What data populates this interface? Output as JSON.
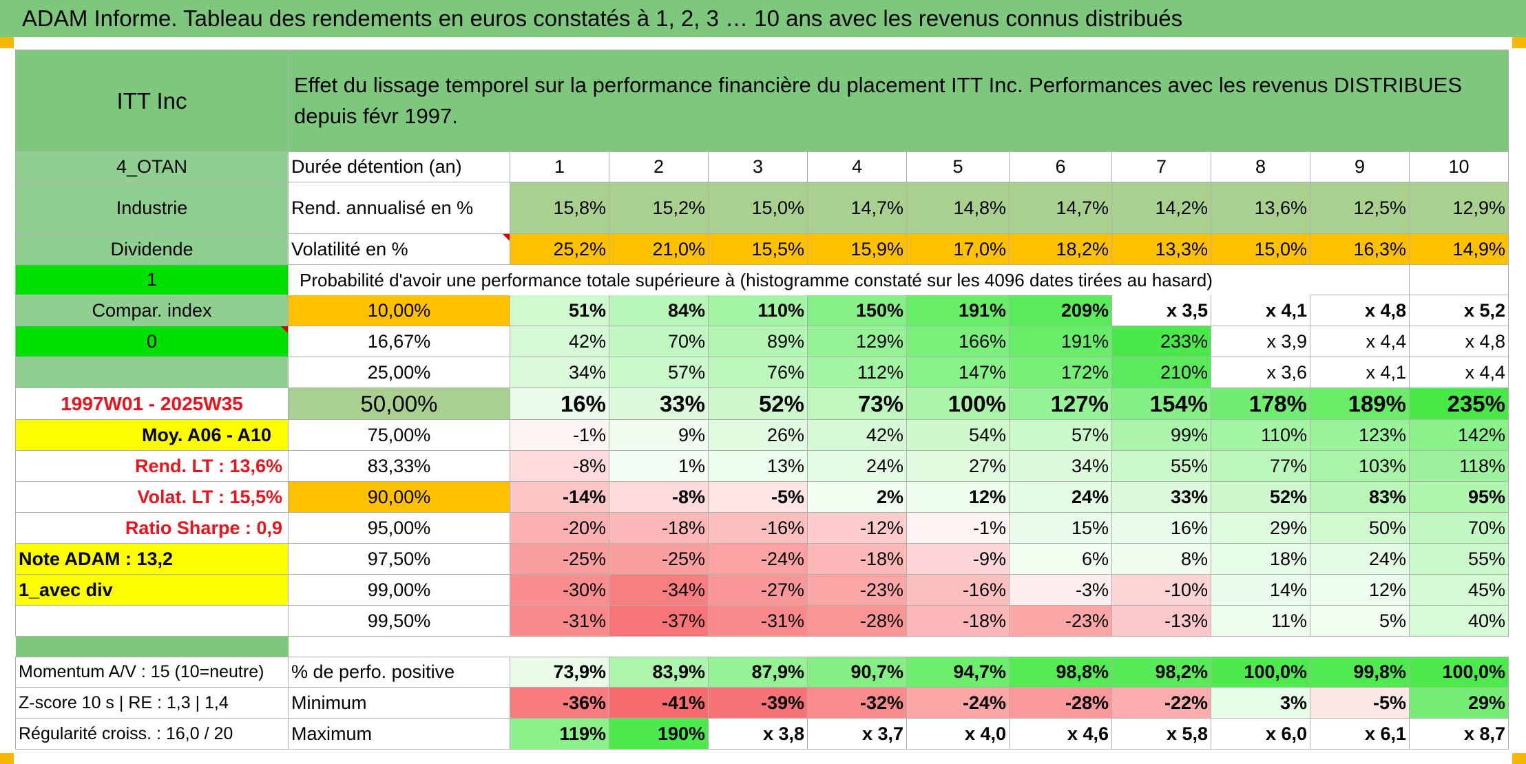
{
  "title": "ADAM Informe. Tableau des rendements en euros constatés à 1, 2, 3 … 10 ans avec les revenus connus distribués",
  "left": {
    "company": "ITT Inc",
    "code": "4_OTAN",
    "sector": "Industrie",
    "dividend_label": "Dividende",
    "dividend_flag": "1",
    "compar_label": "Compar. index",
    "compar_value": "0",
    "period": "1997W01 - 2025W35",
    "moy": "Moy. A06 - A10",
    "rend_lt": "Rend. LT :    13,6%",
    "volat_lt": "Volat. LT :    15,5%",
    "sharpe": "Ratio Sharpe :    0,9",
    "note": "Note ADAM : 13,2",
    "avec_div": "1_avec div",
    "momentum": "Momentum A/V : 15 (10=neutre)",
    "zscore": "Z-score 10 s | RE : 1,3 | 1,4",
    "regularite": "Régularité croiss. : 16,0 / 20"
  },
  "description": "Effet du lissage temporel sur la performance financière du placement ITT Inc. Performances avec les revenus DISTRIBUES depuis févr 1997.",
  "duration_label": "Durée détention (an)",
  "years": [
    "1",
    "2",
    "3",
    "4",
    "5",
    "6",
    "7",
    "8",
    "9",
    "10"
  ],
  "rend_label": "Rend. annualisé en %",
  "rend": [
    "15,8%",
    "15,2%",
    "15,0%",
    "14,7%",
    "14,8%",
    "14,7%",
    "14,2%",
    "13,6%",
    "12,5%",
    "12,9%"
  ],
  "vol_label": "Volatilité en %",
  "vol": [
    "25,2%",
    "21,0%",
    "15,5%",
    "15,9%",
    "17,0%",
    "18,2%",
    "13,3%",
    "15,0%",
    "16,3%",
    "14,9%"
  ],
  "prob_label": "Probabilité d'avoir une performance totale supérieure à (histogramme constaté sur les 4096 dates tirées au hasard)",
  "prob_rows": [
    {
      "p": "10,00%",
      "v": [
        "51%",
        "84%",
        "110%",
        "150%",
        "191%",
        "209%",
        "x 3,5",
        "x 4,1",
        "x 4,8",
        "x 5,2"
      ]
    },
    {
      "p": "16,67%",
      "v": [
        "42%",
        "70%",
        "89%",
        "129%",
        "166%",
        "191%",
        "233%",
        "x 3,9",
        "x 4,4",
        "x 4,8"
      ]
    },
    {
      "p": "25,00%",
      "v": [
        "34%",
        "57%",
        "76%",
        "112%",
        "147%",
        "172%",
        "210%",
        "x 3,6",
        "x 4,1",
        "x 4,4"
      ]
    },
    {
      "p": "50,00%",
      "v": [
        "16%",
        "33%",
        "52%",
        "73%",
        "100%",
        "127%",
        "154%",
        "178%",
        "189%",
        "235%"
      ]
    },
    {
      "p": "75,00%",
      "v": [
        "-1%",
        "9%",
        "26%",
        "42%",
        "54%",
        "57%",
        "99%",
        "110%",
        "123%",
        "142%"
      ]
    },
    {
      "p": "83,33%",
      "v": [
        "-8%",
        "1%",
        "13%",
        "24%",
        "27%",
        "34%",
        "55%",
        "77%",
        "103%",
        "118%"
      ]
    },
    {
      "p": "90,00%",
      "v": [
        "-14%",
        "-8%",
        "-5%",
        "2%",
        "12%",
        "24%",
        "33%",
        "52%",
        "83%",
        "95%"
      ]
    },
    {
      "p": "95,00%",
      "v": [
        "-20%",
        "-18%",
        "-16%",
        "-12%",
        "-1%",
        "15%",
        "16%",
        "29%",
        "50%",
        "70%"
      ]
    },
    {
      "p": "97,50%",
      "v": [
        "-25%",
        "-25%",
        "-24%",
        "-18%",
        "-9%",
        "6%",
        "8%",
        "18%",
        "24%",
        "55%"
      ]
    },
    {
      "p": "99,00%",
      "v": [
        "-30%",
        "-34%",
        "-27%",
        "-23%",
        "-16%",
        "-3%",
        "-10%",
        "14%",
        "12%",
        "45%"
      ]
    },
    {
      "p": "99,50%",
      "v": [
        "-31%",
        "-37%",
        "-31%",
        "-28%",
        "-18%",
        "-23%",
        "-13%",
        "11%",
        "5%",
        "40%"
      ]
    }
  ],
  "pos_label": "% de perfo. positive",
  "pos": [
    "73,9%",
    "83,9%",
    "87,9%",
    "90,7%",
    "94,7%",
    "98,8%",
    "98,2%",
    "100,0%",
    "99,8%",
    "100,0%"
  ],
  "min_label": "Minimum",
  "min": [
    "-36%",
    "-41%",
    "-39%",
    "-32%",
    "-24%",
    "-28%",
    "-22%",
    "3%",
    "-5%",
    "29%"
  ],
  "max_label": "Maximum",
  "max": [
    "119%",
    "190%",
    "x 3,8",
    "x 3,7",
    "x 4,0",
    "x 4,6",
    "x 5,8",
    "x 6,0",
    "x 6,1",
    "x 8,7"
  ],
  "colors": {
    "header_green": "#7ec87e",
    "bright_green": "#00e000",
    "yellow": "#ffff00",
    "orange": "#ffc000",
    "positive_max": "#2ee62e",
    "negative_max": "#f8696b",
    "label_red": "#e8141e"
  }
}
